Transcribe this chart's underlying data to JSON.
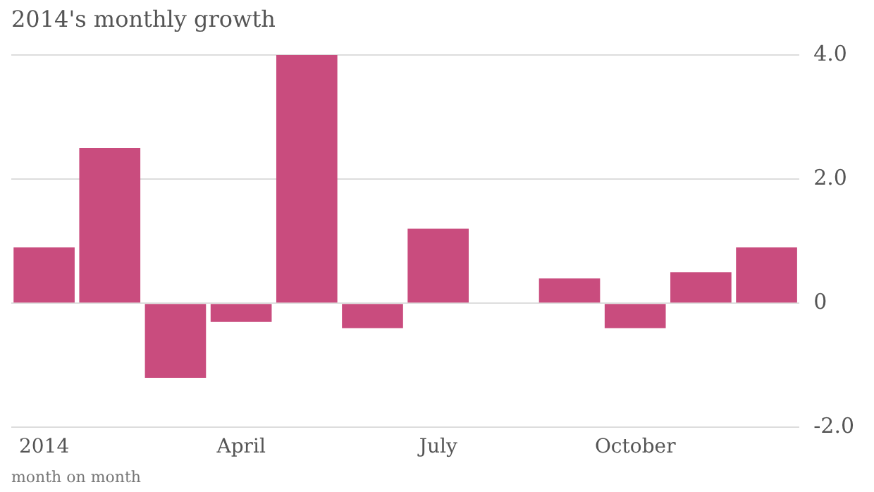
{
  "chart_data": {
    "type": "bar",
    "title": "2014's monthly growth",
    "xlabel": "month on month",
    "categories": [
      "2014",
      null,
      null,
      "April",
      null,
      null,
      "July",
      null,
      null,
      "October",
      null,
      null
    ],
    "values": [
      0.9,
      2.5,
      -1.2,
      -0.3,
      4.0,
      -0.4,
      1.2,
      0,
      0.4,
      -0.4,
      0.5,
      0.9
    ],
    "color": "#c94c7e",
    "ylim": [
      -2,
      4
    ],
    "yticks": [
      {
        "value": -2,
        "label": "-2.0"
      },
      0,
      {
        "value": 2,
        "label": "2.0"
      },
      {
        "value": 4,
        "label": "4.0"
      }
    ],
    "grid": "y",
    "legend": false
  }
}
